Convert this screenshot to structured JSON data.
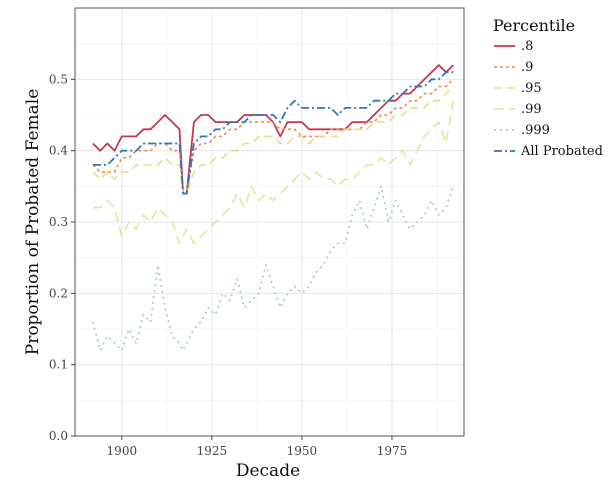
{
  "chart_data": {
    "type": "line",
    "title": "",
    "xlabel": "Decade",
    "ylabel": "Proportion of Probated Female",
    "xlim": [
      1887,
      1995
    ],
    "ylim": [
      0,
      0.6
    ],
    "xticks": [
      1900,
      1925,
      1950,
      1975
    ],
    "xtick_labels": [
      "1900",
      "1925",
      "1950",
      "1975"
    ],
    "yticks": [
      0,
      0.1,
      0.2,
      0.3,
      0.4,
      0.5
    ],
    "ytick_labels": [
      "0.0",
      "0.1",
      "0.2",
      "0.3",
      "0.4",
      "0.5"
    ],
    "grid": true,
    "legend_position": "right",
    "legend_title": "Percentile",
    "x": [
      1892,
      1894,
      1896,
      1898,
      1900,
      1902,
      1904,
      1906,
      1908,
      1910,
      1912,
      1914,
      1916,
      1917,
      1918,
      1920,
      1922,
      1924,
      1926,
      1928,
      1930,
      1932,
      1934,
      1936,
      1938,
      1940,
      1942,
      1944,
      1946,
      1948,
      1950,
      1952,
      1954,
      1956,
      1958,
      1960,
      1962,
      1964,
      1966,
      1968,
      1970,
      1972,
      1974,
      1976,
      1978,
      1980,
      1982,
      1984,
      1986,
      1988,
      1990,
      1992
    ],
    "series": [
      {
        "name": ".8",
        "color": "#c4384c",
        "dash": "",
        "width": 1.8,
        "values": [
          0.41,
          0.4,
          0.41,
          0.4,
          0.42,
          0.42,
          0.42,
          0.43,
          0.43,
          0.44,
          0.45,
          0.44,
          0.43,
          0.34,
          0.34,
          0.44,
          0.45,
          0.45,
          0.44,
          0.44,
          0.44,
          0.44,
          0.45,
          0.45,
          0.45,
          0.45,
          0.44,
          0.42,
          0.44,
          0.44,
          0.44,
          0.43,
          0.43,
          0.43,
          0.43,
          0.43,
          0.43,
          0.44,
          0.44,
          0.44,
          0.45,
          0.46,
          0.47,
          0.47,
          0.48,
          0.48,
          0.49,
          0.5,
          0.51,
          0.52,
          0.51,
          0.52
        ]
      },
      {
        "name": ".9",
        "color": "#ee8a50",
        "dash": "3,3",
        "width": 1.6,
        "values": [
          0.38,
          0.37,
          0.37,
          0.37,
          0.39,
          0.39,
          0.4,
          0.4,
          0.4,
          0.41,
          0.41,
          0.4,
          0.4,
          0.34,
          0.34,
          0.4,
          0.41,
          0.41,
          0.42,
          0.42,
          0.43,
          0.43,
          0.44,
          0.44,
          0.44,
          0.44,
          0.44,
          0.43,
          0.43,
          0.43,
          0.42,
          0.42,
          0.42,
          0.42,
          0.43,
          0.43,
          0.43,
          0.43,
          0.43,
          0.44,
          0.44,
          0.45,
          0.45,
          0.46,
          0.46,
          0.47,
          0.47,
          0.48,
          0.48,
          0.49,
          0.49,
          0.5
        ]
      },
      {
        "name": ".95",
        "color": "#e6dd8c",
        "dash": "8,5",
        "width": 1.6,
        "values": [
          0.37,
          0.36,
          0.37,
          0.36,
          0.37,
          0.37,
          0.38,
          0.38,
          0.38,
          0.38,
          0.39,
          0.38,
          0.38,
          0.34,
          0.34,
          0.37,
          0.38,
          0.38,
          0.39,
          0.39,
          0.4,
          0.4,
          0.41,
          0.41,
          0.42,
          0.42,
          0.42,
          0.41,
          0.41,
          0.42,
          0.42,
          0.41,
          0.42,
          0.42,
          0.42,
          0.42,
          0.43,
          0.43,
          0.43,
          0.43,
          0.44,
          0.44,
          0.44,
          0.45,
          0.45,
          0.46,
          0.46,
          0.46,
          0.47,
          0.47,
          0.48,
          0.49
        ]
      },
      {
        "name": ".99",
        "color": "#dce89a",
        "dash": "10,6",
        "width": 1.6,
        "values": [
          0.32,
          0.32,
          0.33,
          0.32,
          0.28,
          0.3,
          0.29,
          0.31,
          0.3,
          0.32,
          0.31,
          0.3,
          0.27,
          0.28,
          0.29,
          0.27,
          0.28,
          0.29,
          0.3,
          0.31,
          0.32,
          0.34,
          0.32,
          0.35,
          0.33,
          0.34,
          0.33,
          0.34,
          0.35,
          0.36,
          0.37,
          0.36,
          0.37,
          0.36,
          0.36,
          0.35,
          0.36,
          0.36,
          0.37,
          0.38,
          0.38,
          0.39,
          0.38,
          0.39,
          0.4,
          0.38,
          0.4,
          0.42,
          0.43,
          0.44,
          0.41,
          0.47
        ]
      },
      {
        "name": ".999",
        "color": "#a8d2c6",
        "dash": "2,4",
        "width": 1.8,
        "values": [
          0.16,
          0.12,
          0.14,
          0.13,
          0.12,
          0.15,
          0.13,
          0.17,
          0.16,
          0.24,
          0.18,
          0.14,
          0.13,
          0.12,
          0.13,
          0.15,
          0.16,
          0.18,
          0.17,
          0.2,
          0.19,
          0.22,
          0.18,
          0.19,
          0.2,
          0.24,
          0.21,
          0.18,
          0.2,
          0.21,
          0.2,
          0.21,
          0.23,
          0.24,
          0.26,
          0.27,
          0.27,
          0.31,
          0.33,
          0.29,
          0.32,
          0.35,
          0.3,
          0.33,
          0.31,
          0.29,
          0.3,
          0.31,
          0.33,
          0.31,
          0.32,
          0.35
        ]
      },
      {
        "name": "All Probated",
        "color": "#2f78b3",
        "dash": "8,3,2,3",
        "width": 1.8,
        "values": [
          0.38,
          0.38,
          0.38,
          0.39,
          0.4,
          0.4,
          0.4,
          0.41,
          0.41,
          0.41,
          0.41,
          0.41,
          0.41,
          0.34,
          0.34,
          0.41,
          0.42,
          0.42,
          0.43,
          0.43,
          0.44,
          0.44,
          0.44,
          0.45,
          0.45,
          0.45,
          0.45,
          0.44,
          0.46,
          0.47,
          0.46,
          0.46,
          0.46,
          0.46,
          0.46,
          0.45,
          0.46,
          0.46,
          0.46,
          0.46,
          0.47,
          0.47,
          0.47,
          0.48,
          0.48,
          0.49,
          0.49,
          0.49,
          0.5,
          0.5,
          0.51,
          0.51
        ]
      }
    ]
  }
}
